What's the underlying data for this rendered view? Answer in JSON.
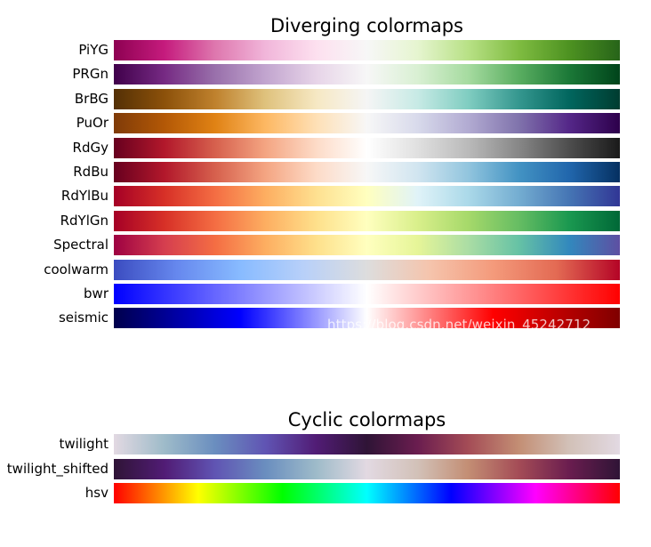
{
  "chart_data": [
    {
      "type": "heatmap",
      "title": "Diverging colormaps",
      "colormaps": [
        {
          "name": "PiYG",
          "stops": [
            "#8e0152",
            "#c51b7d",
            "#de77ae",
            "#f1b6da",
            "#fde0ef",
            "#f7f7f7",
            "#e6f5d0",
            "#b8e186",
            "#7fbc41",
            "#4d9221",
            "#276419"
          ]
        },
        {
          "name": "PRGn",
          "stops": [
            "#40004b",
            "#762a83",
            "#9970ab",
            "#c2a5cf",
            "#e7d4e8",
            "#f7f7f7",
            "#d9f0d3",
            "#a6dba0",
            "#5aae61",
            "#1b7837",
            "#00441b"
          ]
        },
        {
          "name": "BrBG",
          "stops": [
            "#543005",
            "#8c510a",
            "#bf812d",
            "#dfc27d",
            "#f6e8c3",
            "#f5f5f5",
            "#c7eae5",
            "#80cdc1",
            "#35978f",
            "#01665e",
            "#003c30"
          ]
        },
        {
          "name": "PuOr",
          "stops": [
            "#7f3b08",
            "#b35806",
            "#e08214",
            "#fdb863",
            "#fee0b6",
            "#f7f7f7",
            "#d8daeb",
            "#b2abd2",
            "#8073ac",
            "#542788",
            "#2d004b"
          ]
        },
        {
          "name": "RdGy",
          "stops": [
            "#67001f",
            "#b2182b",
            "#d6604d",
            "#f4a582",
            "#fddbc7",
            "#ffffff",
            "#e0e0e0",
            "#bababa",
            "#878787",
            "#4d4d4d",
            "#1a1a1a"
          ]
        },
        {
          "name": "RdBu",
          "stops": [
            "#67001f",
            "#b2182b",
            "#d6604d",
            "#f4a582",
            "#fddbc7",
            "#f7f7f7",
            "#d1e5f0",
            "#92c5de",
            "#4393c3",
            "#2166ac",
            "#053061"
          ]
        },
        {
          "name": "RdYlBu",
          "stops": [
            "#a50026",
            "#d73027",
            "#f46d43",
            "#fdae61",
            "#fee090",
            "#ffffbf",
            "#e0f3f8",
            "#abd9e9",
            "#74add1",
            "#4575b4",
            "#313695"
          ]
        },
        {
          "name": "RdYlGn",
          "stops": [
            "#a50026",
            "#d73027",
            "#f46d43",
            "#fdae61",
            "#fee08b",
            "#ffffbf",
            "#d9ef8b",
            "#a6d96a",
            "#66bd63",
            "#1a9850",
            "#006837"
          ]
        },
        {
          "name": "Spectral",
          "stops": [
            "#9e0142",
            "#d53e4f",
            "#f46d43",
            "#fdae61",
            "#fee08b",
            "#ffffbf",
            "#e6f598",
            "#abdda4",
            "#66c2a5",
            "#3288bd",
            "#5e4fa2"
          ]
        },
        {
          "name": "coolwarm",
          "stops": [
            "#3b4cc0",
            "#6688ee",
            "#88bbff",
            "#b8d0f9",
            "#dddddd",
            "#f5c4ac",
            "#f49a7b",
            "#e36a53",
            "#b40426"
          ]
        },
        {
          "name": "bwr",
          "stops": [
            "#0000ff",
            "#ffffff",
            "#ff0000"
          ]
        },
        {
          "name": "seismic",
          "stops": [
            "#00004c",
            "#0000ff",
            "#ffffff",
            "#ff0000",
            "#7f0000"
          ]
        }
      ]
    },
    {
      "type": "heatmap",
      "title": "Cyclic colormaps",
      "colormaps": [
        {
          "name": "twilight",
          "stops": [
            "#e2d9e2",
            "#9ebbc9",
            "#6a8ebf",
            "#6054b3",
            "#511c75",
            "#2f1436",
            "#6a1d4f",
            "#a44c56",
            "#c38e74",
            "#d2c1b8",
            "#e2d9e2"
          ]
        },
        {
          "name": "twilight_shifted",
          "stops": [
            "#2f1436",
            "#511c75",
            "#6054b3",
            "#6a8ebf",
            "#9ebbc9",
            "#e2d9e2",
            "#d2c1b8",
            "#c38e74",
            "#a44c56",
            "#6a1d4f",
            "#2f1436"
          ]
        },
        {
          "name": "hsv",
          "stops": [
            "#ff0000",
            "#ffff00",
            "#00ff00",
            "#00ffff",
            "#0000ff",
            "#ff00ff",
            "#ff0000"
          ]
        }
      ]
    }
  ],
  "watermark": "https://blog.csdn.net/weixin_45242712"
}
